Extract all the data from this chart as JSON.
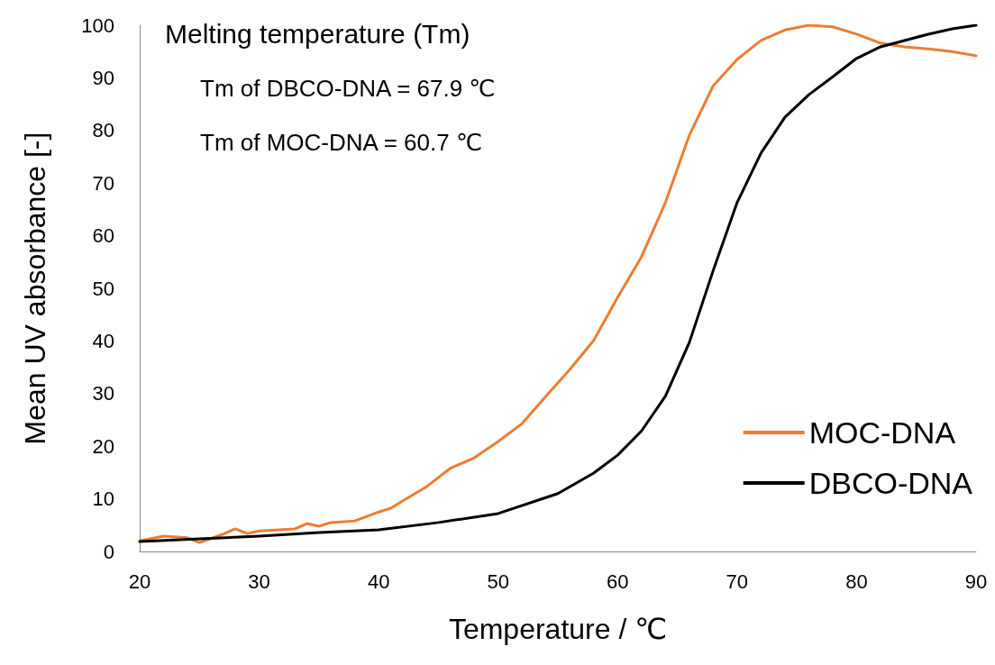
{
  "chart_data": {
    "type": "line",
    "xlabel": "Temperature / ℃",
    "ylabel": "Mean UV absorbance [-]",
    "xlim": [
      20,
      90
    ],
    "xticks": [
      20,
      30,
      40,
      50,
      60,
      70,
      80,
      90
    ],
    "ylim": [
      0,
      100
    ],
    "yticks": [
      0,
      10,
      20,
      30,
      40,
      50,
      60,
      70,
      80,
      90,
      100
    ],
    "grid": false,
    "legend": "bottom right",
    "marker": "none",
    "line_style": "solid",
    "annotations": [
      "Melting temperature (Tm)",
      "Tm of DBCO-DNA = 67.9 ℃",
      "Tm of MOC-DNA = 60.7 ℃"
    ],
    "series": [
      {
        "name": "MOC-DNA",
        "color": "#ed7d31",
        "x": [
          20,
          22,
          24,
          25,
          27,
          28,
          29,
          30,
          33,
          34,
          35,
          36,
          38,
          40,
          41,
          42,
          44,
          46,
          48,
          50,
          52,
          54,
          56,
          58,
          60,
          62,
          64,
          66,
          68,
          70,
          72,
          74,
          76,
          78,
          80,
          82,
          84,
          86,
          88,
          90
        ],
        "values": [
          2.0,
          2.9,
          2.6,
          1.7,
          3.3,
          4.3,
          3.4,
          3.9,
          4.3,
          5.3,
          4.8,
          5.5,
          5.8,
          7.5,
          8.2,
          9.6,
          12.3,
          15.8,
          17.8,
          20.9,
          24.3,
          29.5,
          34.6,
          40.1,
          48.3,
          56.0,
          66.3,
          79.1,
          88.5,
          93.5,
          97.1,
          99.1,
          100,
          99.7,
          98.3,
          96.6,
          95.9,
          95.5,
          95.0,
          94.2
        ]
      },
      {
        "name": "DBCO-DNA",
        "color": "#000000",
        "x": [
          20,
          25,
          30,
          35,
          40,
          45,
          50,
          55,
          58,
          60,
          62,
          64,
          66,
          68,
          70,
          72,
          74,
          76,
          78,
          80,
          82,
          84,
          86,
          88,
          90
        ],
        "values": [
          1.9,
          2.4,
          2.9,
          3.6,
          4.1,
          5.5,
          7.2,
          11.0,
          14.9,
          18.3,
          22.9,
          29.5,
          39.7,
          53.4,
          66.3,
          75.7,
          82.5,
          86.8,
          90.2,
          93.7,
          95.9,
          97.1,
          98.3,
          99.3,
          100
        ]
      }
    ]
  }
}
